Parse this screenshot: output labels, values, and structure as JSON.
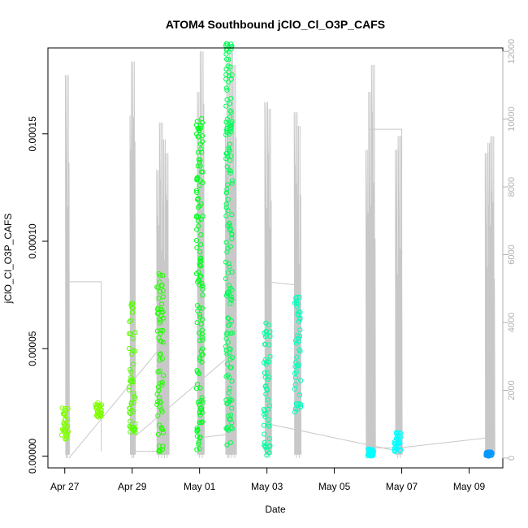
{
  "chart_data": {
    "type": "scatter",
    "title": "ATOM4 Southbound jClO_Cl_O3P_CAFS",
    "xlabel": "Date",
    "ylabel": "jClO_Cl_O3P_CAFS",
    "xlim": [
      "2016-04-26T12:00",
      "2016-05-10T00:00"
    ],
    "ylim": [
      -5.5e-06,
      0.00019
    ],
    "y_ticks": [
      "0.00000",
      "0.00005",
      "0.00010",
      "0.00015"
    ],
    "x_ticks": [
      "Apr 27",
      "Apr 29",
      "May 01",
      "May 03",
      "May 05",
      "May 07",
      "May 09"
    ],
    "right_axis": {
      "ylim": [
        -290,
        12100
      ],
      "ticks": [
        "0",
        "2000",
        "4000",
        "6000",
        "8000",
        "10000",
        "12000"
      ],
      "color": "#b0b0b0"
    },
    "grid": false,
    "point_series": [
      {
        "x": "2016-04-27T00:05",
        "y": [
          8e-06,
          2.3e-05
        ],
        "color": "#7fff00"
      },
      {
        "x": "2016-04-28T00:00",
        "y": [
          1.8e-05,
          2.5e-05
        ],
        "color": "#7fff00"
      },
      {
        "x": "2016-04-29T00:00",
        "y": [
          1.1e-05,
          7.5e-05
        ],
        "color": "#55ff00"
      },
      {
        "x": "2016-04-29T20:00",
        "y": [
          2e-06,
          8.5e-05
        ],
        "color": "#22ff00"
      },
      {
        "x": "2016-05-01T00:05",
        "y": [
          3e-06,
          0.000158
        ],
        "color": "#00ff1f"
      },
      {
        "x": "2016-05-01T21:00",
        "y": [
          5e-06,
          0.000192
        ],
        "color": "#00ff55"
      },
      {
        "x": "2016-05-03T00:00",
        "y": [
          0.0,
          6.2e-05
        ],
        "color": "#00ff9f"
      },
      {
        "x": "2016-05-03T22:00",
        "y": [
          2e-05,
          7.5e-05
        ],
        "color": "#00ffbb"
      },
      {
        "x": "2016-05-06T02:00",
        "y": [
          0.0,
          4e-06
        ],
        "color": "#00ffff"
      },
      {
        "x": "2016-05-06T21:00",
        "y": [
          2e-06,
          1.1e-05
        ],
        "color": "#00ffff"
      },
      {
        "x": "2016-05-09T14:00",
        "y": [
          0.0,
          2e-06
        ],
        "color": "#0098ff"
      }
    ],
    "altitude_line": {
      "color": "#c8c8c8",
      "spikes": [
        {
          "x": "2016-04-27T02:00",
          "top": 11300
        },
        {
          "x": "2016-04-29T00:00",
          "top": 10100
        },
        {
          "x": "2016-04-29T01:00",
          "top": 11700
        },
        {
          "x": "2016-04-29T19:00",
          "top": 8500
        },
        {
          "x": "2016-04-29T21:00",
          "top": 9900
        },
        {
          "x": "2016-04-29T23:00",
          "top": 9400
        },
        {
          "x": "2016-04-30T01:00",
          "top": 9000
        },
        {
          "x": "2016-05-01T00:00",
          "top": 10800
        },
        {
          "x": "2016-05-01T02:00",
          "top": 12000
        },
        {
          "x": "2016-05-01T20:00",
          "top": 9900
        },
        {
          "x": "2016-05-01T21:00",
          "top": 11700
        },
        {
          "x": "2016-05-01T23:00",
          "top": 12000
        },
        {
          "x": "2016-05-02T01:00",
          "top": 11600
        },
        {
          "x": "2016-05-03T00:00",
          "top": 10500
        },
        {
          "x": "2016-05-03T02:00",
          "top": 10300
        },
        {
          "x": "2016-05-03T21:00",
          "top": 10200
        },
        {
          "x": "2016-05-03T23:00",
          "top": 9800
        },
        {
          "x": "2016-05-06T00:00",
          "top": 9100
        },
        {
          "x": "2016-05-06T02:00",
          "top": 10800
        },
        {
          "x": "2016-05-06T04:00",
          "top": 11600
        },
        {
          "x": "2016-05-06T21:00",
          "top": 9100
        },
        {
          "x": "2016-05-06T23:00",
          "top": 9500
        },
        {
          "x": "2016-05-09T13:00",
          "top": 9000
        },
        {
          "x": "2016-05-09T15:00",
          "top": 9300
        },
        {
          "x": "2016-05-09T17:00",
          "top": 9500
        }
      ],
      "connectors": [
        [
          [
            "2016-04-27T01:00",
            0
          ],
          [
            "2016-04-27T01:00",
            5200
          ],
          [
            "2016-04-28T02:00",
            5200
          ],
          [
            "2016-04-28T02:00",
            200
          ]
        ],
        [
          [
            "2016-04-27T03:00",
            0
          ],
          [
            "2016-04-29T19:00",
            3200
          ]
        ],
        [
          [
            "2016-04-29T00:00",
            200
          ],
          [
            "2016-04-30T00:00",
            200
          ]
        ],
        [
          [
            "2016-04-29T01:00",
            600
          ],
          [
            "2016-05-01T21:00",
            3000
          ]
        ],
        [
          [
            "2016-05-01T00:00",
            600
          ],
          [
            "2016-05-01T20:00",
            700
          ]
        ],
        [
          [
            "2016-05-03T00:00",
            5200
          ],
          [
            "2016-05-03T22:00",
            5100
          ]
        ],
        [
          [
            "2016-05-03T02:00",
            1000
          ],
          [
            "2016-05-06T22:00",
            200
          ]
        ],
        [
          [
            "2016-05-06T01:00",
            9700
          ],
          [
            "2016-05-07T00:00",
            9700
          ],
          [
            "2016-05-07T00:00",
            6000
          ]
        ],
        [
          [
            "2016-05-06T22:00",
            300
          ],
          [
            "2016-05-09T14:00",
            600
          ]
        ],
        [
          [
            "2016-05-06T03:00",
            300
          ],
          [
            "2016-05-07T00:00",
            300
          ]
        ]
      ]
    }
  }
}
